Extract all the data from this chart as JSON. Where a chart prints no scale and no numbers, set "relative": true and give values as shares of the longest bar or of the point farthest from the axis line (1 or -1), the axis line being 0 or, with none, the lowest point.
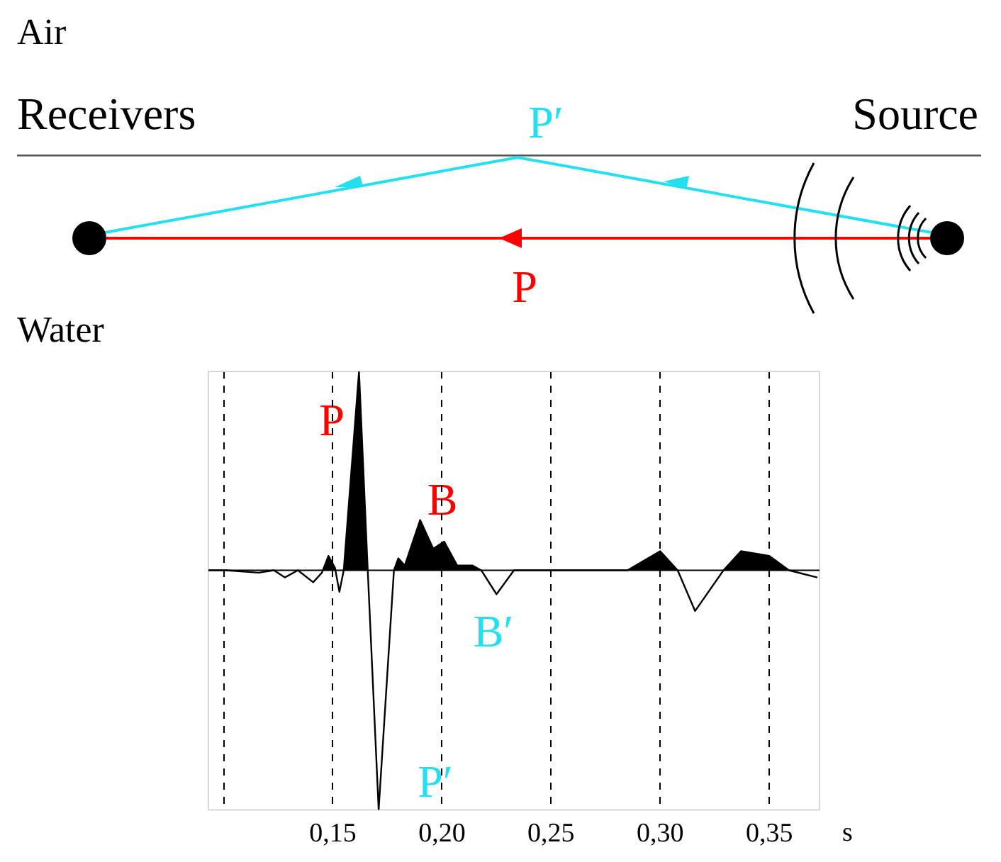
{
  "chart_data": {
    "type": "area",
    "relative": true,
    "x": [
      0.093,
      0.101,
      0.116,
      0.123,
      0.128,
      0.134,
      0.141,
      0.145,
      0.148,
      0.151,
      0.153,
      0.155,
      0.162,
      0.166,
      0.171,
      0.178,
      0.18,
      0.183,
      0.19,
      0.196,
      0.201,
      0.207,
      0.214,
      0.218,
      0.225,
      0.233,
      0.251,
      0.285,
      0.3,
      0.308,
      0.316,
      0.329,
      0.337,
      0.35,
      0.359,
      0.372
    ],
    "series": [
      {
        "color": "#000000",
        "values": [
          0,
          0,
          -0.01,
          0,
          -0.03,
          0,
          -0.05,
          -0.01,
          0.06,
          0.01,
          -0.09,
          0,
          0.83,
          0,
          -1,
          0,
          0.05,
          0.02,
          0.21,
          0.09,
          0.12,
          0.02,
          0.02,
          0,
          -0.1,
          0,
          0,
          0,
          0.08,
          0,
          -0.17,
          0,
          0.08,
          0.06,
          0,
          -0.03
        ]
      }
    ],
    "xlim": [
      0.093,
      0.373
    ],
    "xticks": [
      {
        "value": 0.1,
        "label": null
      },
      {
        "value": 0.15,
        "label": "0,15"
      },
      {
        "value": 0.2,
        "label": "0,20"
      },
      {
        "value": 0.25,
        "label": "0,25"
      },
      {
        "value": 0.3,
        "label": "0,30"
      },
      {
        "value": 0.35,
        "label": "0,35"
      }
    ],
    "xlabel": "s",
    "grid": "x",
    "annotations": [
      "Air",
      "Receivers",
      "Source",
      "P′",
      "P",
      "Water",
      "P",
      "B",
      "B′",
      "P′"
    ]
  }
}
